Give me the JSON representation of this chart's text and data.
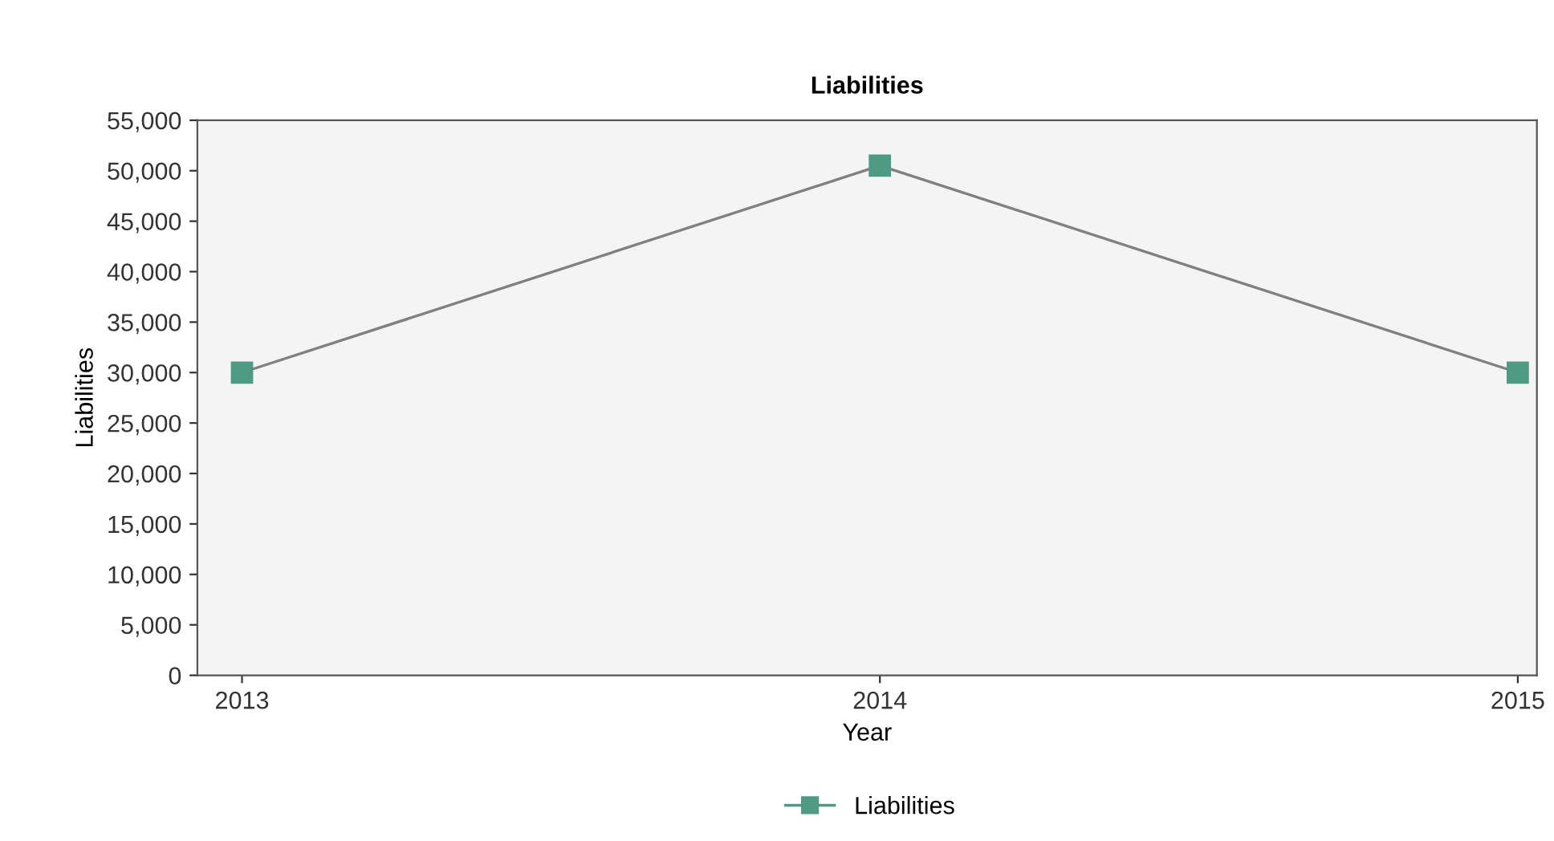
{
  "chart_data": {
    "type": "line",
    "title": "Liabilities",
    "xlabel": "Year",
    "ylabel": "Liabilities",
    "x": [
      2013,
      2014,
      2015
    ],
    "series": [
      {
        "name": "Liabilities",
        "color": "#4e9a84",
        "values": [
          30000,
          50500,
          30000
        ]
      }
    ],
    "xlim": [
      2012.93,
      2015.03
    ],
    "xticks": [
      {
        "value": 2013,
        "label": "2013"
      },
      {
        "value": 2014,
        "label": "2014"
      },
      {
        "value": 2015,
        "label": "2015"
      }
    ],
    "ylim": [
      0,
      55000
    ],
    "yticks": [
      {
        "value": 0,
        "label": "0"
      },
      {
        "value": 5000,
        "label": "5,000"
      },
      {
        "value": 10000,
        "label": "10,000"
      },
      {
        "value": 15000,
        "label": "15,000"
      },
      {
        "value": 20000,
        "label": "20,000"
      },
      {
        "value": 25000,
        "label": "25,000"
      },
      {
        "value": 30000,
        "label": "30,000"
      },
      {
        "value": 35000,
        "label": "35,000"
      },
      {
        "value": 40000,
        "label": "40,000"
      },
      {
        "value": 45000,
        "label": "45,000"
      },
      {
        "value": 50000,
        "label": "50,000"
      },
      {
        "value": 55000,
        "label": "55,000"
      }
    ],
    "marker": "square",
    "legend": "bottom",
    "grid": false
  }
}
